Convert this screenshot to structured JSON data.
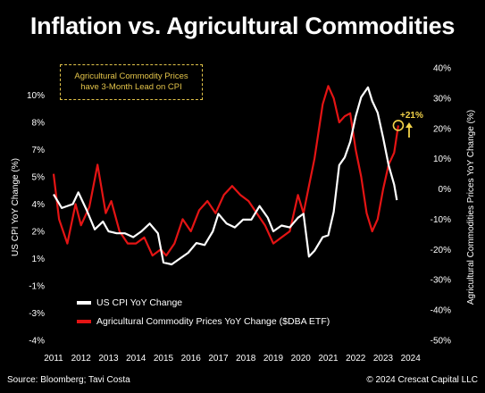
{
  "chart_data": {
    "type": "line",
    "title": "Inflation vs. Agricultural Commodities",
    "annotation": "Agricultural Commodity Prices have 3-Month Lead on CPI",
    "callout": "+21%",
    "left_axis": {
      "label": "US CPI YoY Change (%)",
      "range": [
        -4,
        10
      ],
      "ticks": [
        "-4%",
        "-3%",
        "-1%",
        "1%",
        "2%",
        "4%",
        "5%",
        "7%",
        "8%",
        "10%"
      ],
      "tick_values": [
        -4,
        -2.6,
        -1.2,
        0.2,
        1.6,
        3.0,
        4.4,
        5.8,
        7.2,
        8.6
      ]
    },
    "right_axis": {
      "label": "Agricultural Commodities Prices YoY Change (%)",
      "range": [
        -50,
        40
      ],
      "ticks": [
        "-50%",
        "-40%",
        "-30%",
        "-20%",
        "-10%",
        "0%",
        "10%",
        "20%",
        "30%",
        "40%"
      ],
      "tick_values": [
        -50,
        -40,
        -30,
        -20,
        -10,
        0,
        10,
        20,
        30,
        40
      ]
    },
    "x_axis": {
      "ticks": [
        "2011",
        "2012",
        "2013",
        "2014",
        "2015",
        "2016",
        "2017",
        "2018",
        "2019",
        "2020",
        "2021",
        "2022",
        "2023",
        "2024"
      ],
      "range": [
        2011,
        2024.4
      ]
    },
    "series": [
      {
        "name": "US CPI YoY Change",
        "axis": "left",
        "color": "#ffffff",
        "x": [
          2011.0,
          2011.3,
          2011.7,
          2011.9,
          2012.2,
          2012.5,
          2012.8,
          2013.0,
          2013.3,
          2013.6,
          2013.9,
          2014.2,
          2014.5,
          2014.8,
          2015.0,
          2015.3,
          2015.6,
          2015.9,
          2016.2,
          2016.5,
          2016.8,
          2017.0,
          2017.3,
          2017.6,
          2017.9,
          2018.2,
          2018.5,
          2018.8,
          2019.0,
          2019.3,
          2019.6,
          2019.9,
          2020.1,
          2020.3,
          2020.5,
          2020.8,
          2021.0,
          2021.2,
          2021.4,
          2021.6,
          2021.8,
          2022.0,
          2022.2,
          2022.45,
          2022.6,
          2022.8,
          2023.0,
          2023.2,
          2023.4,
          2023.5
        ],
        "values": [
          3.5,
          2.8,
          3.0,
          3.6,
          2.7,
          1.7,
          2.1,
          1.6,
          1.5,
          1.5,
          1.3,
          1.6,
          2.0,
          1.5,
          0.0,
          -0.1,
          0.2,
          0.5,
          1.0,
          0.9,
          1.6,
          2.5,
          2.0,
          1.8,
          2.2,
          2.2,
          2.9,
          2.3,
          1.6,
          1.9,
          1.8,
          2.3,
          2.5,
          0.3,
          0.6,
          1.3,
          1.4,
          2.6,
          5.0,
          5.4,
          6.2,
          7.5,
          8.5,
          9.0,
          8.3,
          7.7,
          6.4,
          5.0,
          4.0,
          3.2
        ]
      },
      {
        "name": "Agricultural Commodity Prices YoY Change ($DBA ETF)",
        "axis": "right",
        "color": "#e41414",
        "x": [
          2011.0,
          2011.2,
          2011.5,
          2011.8,
          2012.0,
          2012.3,
          2012.6,
          2012.9,
          2013.1,
          2013.4,
          2013.7,
          2014.0,
          2014.3,
          2014.6,
          2014.9,
          2015.1,
          2015.4,
          2015.7,
          2016.0,
          2016.3,
          2016.6,
          2016.9,
          2017.2,
          2017.5,
          2017.8,
          2018.1,
          2018.4,
          2018.7,
          2019.0,
          2019.3,
          2019.6,
          2019.9,
          2020.1,
          2020.3,
          2020.5,
          2020.8,
          2021.0,
          2021.2,
          2021.4,
          2021.6,
          2021.8,
          2022.0,
          2022.2,
          2022.4,
          2022.6,
          2022.8,
          2023.0,
          2023.2,
          2023.4,
          2023.55
        ],
        "values": [
          5,
          -10,
          -18,
          -5,
          -12,
          -6,
          8,
          -8,
          -4,
          -14,
          -18,
          -18,
          -16,
          -22,
          -20,
          -22,
          -18,
          -10,
          -14,
          -7,
          -4,
          -8,
          -2,
          1,
          -2,
          -4,
          -8,
          -12,
          -18,
          -16,
          -14,
          -2,
          -8,
          1,
          10,
          28,
          34,
          30,
          22,
          24,
          25,
          13,
          4,
          -8,
          -14,
          -10,
          0,
          8,
          12,
          21
        ]
      }
    ],
    "legend": [
      "US CPI YoY Change",
      "Agricultural Commodity Prices YoY Change ($DBA ETF)"
    ],
    "source": "Source: Bloomberg; Tavi Costa",
    "copyright": "© 2024 Crescat Capital LLC"
  }
}
